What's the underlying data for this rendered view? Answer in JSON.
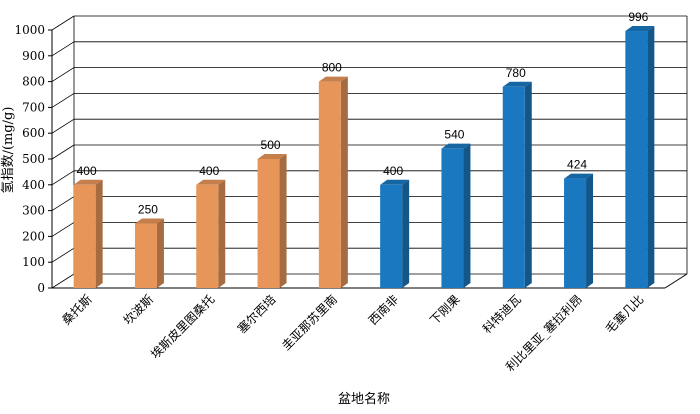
{
  "chart_data": {
    "type": "bar",
    "xlabel": "盆地名称",
    "ylabel": "氢指数/(mg/g)",
    "ylim": [
      0,
      1000
    ],
    "yticks": [
      0,
      100,
      200,
      300,
      400,
      500,
      600,
      700,
      800,
      900,
      1000
    ],
    "grid": true,
    "categories": [
      "桑托斯",
      "坎波斯",
      "埃斯皮里图桑托",
      "塞尔西培",
      "圭亚那苏里南",
      "西南非",
      "下刚果",
      "科特迪瓦",
      "利比里亚_塞拉利昂",
      "毛塞几比"
    ],
    "values": [
      400,
      250,
      400,
      500,
      800,
      400,
      540,
      780,
      424,
      996
    ],
    "data_labels": [
      "400",
      "250",
      "400",
      "500",
      "800",
      "400",
      "540",
      "780",
      "424",
      "996"
    ],
    "bar_colors": [
      "#e8955a",
      "#e8955a",
      "#e8955a",
      "#e8955a",
      "#e8955a",
      "#1a78c0",
      "#1a78c0",
      "#1a78c0",
      "#1a78c0",
      "#1a78c0"
    ]
  }
}
